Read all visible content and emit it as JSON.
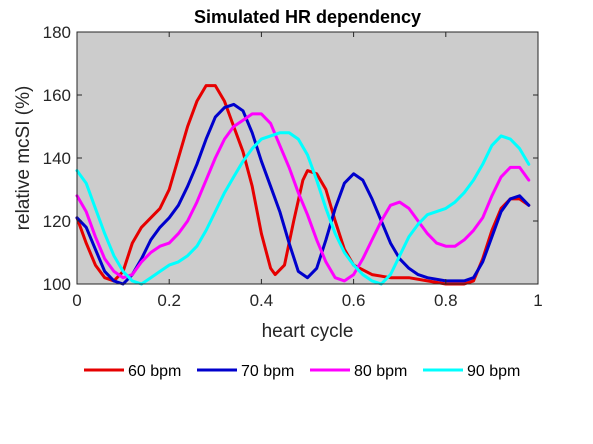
{
  "chart_data": {
    "type": "line",
    "title": "Simulated HR dependency",
    "xlabel": "heart cycle",
    "ylabel": "relative mcSI (%)",
    "xlim": [
      0,
      1
    ],
    "ylim": [
      100,
      180
    ],
    "xticks": [
      "0",
      "0.2",
      "0.4",
      "0.6",
      "0.8",
      "1"
    ],
    "yticks": [
      "100",
      "120",
      "140",
      "160",
      "180"
    ],
    "grid": false,
    "plot_background": "#cccccc",
    "legend_position": "bottom",
    "series": [
      {
        "name": "60 bpm",
        "color": "#e60000",
        "points": [
          [
            0.0,
            121
          ],
          [
            0.02,
            113
          ],
          [
            0.04,
            106
          ],
          [
            0.06,
            102
          ],
          [
            0.08,
            101
          ],
          [
            0.1,
            104
          ],
          [
            0.12,
            113
          ],
          [
            0.14,
            118
          ],
          [
            0.16,
            121
          ],
          [
            0.18,
            124
          ],
          [
            0.2,
            130
          ],
          [
            0.22,
            140
          ],
          [
            0.24,
            150
          ],
          [
            0.26,
            158
          ],
          [
            0.28,
            163
          ],
          [
            0.3,
            163
          ],
          [
            0.32,
            158
          ],
          [
            0.34,
            150
          ],
          [
            0.36,
            142
          ],
          [
            0.38,
            131
          ],
          [
            0.4,
            116
          ],
          [
            0.42,
            105
          ],
          [
            0.43,
            103
          ],
          [
            0.45,
            106
          ],
          [
            0.47,
            120
          ],
          [
            0.49,
            133
          ],
          [
            0.5,
            136
          ],
          [
            0.52,
            135
          ],
          [
            0.54,
            130
          ],
          [
            0.56,
            120
          ],
          [
            0.58,
            111
          ],
          [
            0.6,
            106
          ],
          [
            0.64,
            103
          ],
          [
            0.68,
            102
          ],
          [
            0.72,
            102
          ],
          [
            0.76,
            101
          ],
          [
            0.8,
            100
          ],
          [
            0.84,
            100
          ],
          [
            0.86,
            101
          ],
          [
            0.88,
            108
          ],
          [
            0.9,
            117
          ],
          [
            0.92,
            124
          ],
          [
            0.94,
            127
          ],
          [
            0.96,
            127
          ],
          [
            0.98,
            125
          ]
        ]
      },
      {
        "name": "70 bpm",
        "color": "#0000cc",
        "points": [
          [
            0.0,
            121
          ],
          [
            0.02,
            118
          ],
          [
            0.04,
            111
          ],
          [
            0.06,
            104
          ],
          [
            0.08,
            101
          ],
          [
            0.1,
            100
          ],
          [
            0.12,
            103
          ],
          [
            0.14,
            108
          ],
          [
            0.16,
            114
          ],
          [
            0.18,
            118
          ],
          [
            0.2,
            121
          ],
          [
            0.22,
            125
          ],
          [
            0.24,
            131
          ],
          [
            0.26,
            138
          ],
          [
            0.28,
            146
          ],
          [
            0.3,
            153
          ],
          [
            0.32,
            156
          ],
          [
            0.34,
            157
          ],
          [
            0.36,
            155
          ],
          [
            0.38,
            148
          ],
          [
            0.4,
            139
          ],
          [
            0.42,
            131
          ],
          [
            0.44,
            123
          ],
          [
            0.46,
            113
          ],
          [
            0.48,
            104
          ],
          [
            0.5,
            102
          ],
          [
            0.52,
            105
          ],
          [
            0.54,
            114
          ],
          [
            0.56,
            124
          ],
          [
            0.58,
            132
          ],
          [
            0.6,
            135
          ],
          [
            0.62,
            133
          ],
          [
            0.64,
            127
          ],
          [
            0.66,
            120
          ],
          [
            0.68,
            113
          ],
          [
            0.7,
            108
          ],
          [
            0.72,
            105
          ],
          [
            0.74,
            103
          ],
          [
            0.76,
            102
          ],
          [
            0.8,
            101
          ],
          [
            0.84,
            101
          ],
          [
            0.86,
            102
          ],
          [
            0.88,
            107
          ],
          [
            0.9,
            115
          ],
          [
            0.92,
            123
          ],
          [
            0.94,
            127
          ],
          [
            0.96,
            128
          ],
          [
            0.98,
            125
          ]
        ]
      },
      {
        "name": "80 bpm",
        "color": "#ff00ff",
        "points": [
          [
            0.0,
            128
          ],
          [
            0.02,
            123
          ],
          [
            0.04,
            115
          ],
          [
            0.06,
            108
          ],
          [
            0.08,
            104
          ],
          [
            0.1,
            102
          ],
          [
            0.12,
            103
          ],
          [
            0.14,
            107
          ],
          [
            0.16,
            110
          ],
          [
            0.18,
            112
          ],
          [
            0.2,
            113
          ],
          [
            0.22,
            116
          ],
          [
            0.24,
            120
          ],
          [
            0.26,
            126
          ],
          [
            0.28,
            133
          ],
          [
            0.3,
            140
          ],
          [
            0.32,
            146
          ],
          [
            0.34,
            150
          ],
          [
            0.36,
            152
          ],
          [
            0.38,
            154
          ],
          [
            0.4,
            154
          ],
          [
            0.42,
            151
          ],
          [
            0.44,
            144
          ],
          [
            0.46,
            137
          ],
          [
            0.48,
            129
          ],
          [
            0.5,
            122
          ],
          [
            0.52,
            114
          ],
          [
            0.54,
            107
          ],
          [
            0.56,
            102
          ],
          [
            0.58,
            101
          ],
          [
            0.6,
            103
          ],
          [
            0.62,
            108
          ],
          [
            0.64,
            114
          ],
          [
            0.66,
            120
          ],
          [
            0.68,
            125
          ],
          [
            0.7,
            126
          ],
          [
            0.72,
            124
          ],
          [
            0.74,
            120
          ],
          [
            0.76,
            116
          ],
          [
            0.78,
            113
          ],
          [
            0.8,
            112
          ],
          [
            0.82,
            112
          ],
          [
            0.84,
            114
          ],
          [
            0.86,
            117
          ],
          [
            0.88,
            121
          ],
          [
            0.9,
            128
          ],
          [
            0.92,
            134
          ],
          [
            0.94,
            137
          ],
          [
            0.96,
            137
          ],
          [
            0.98,
            133
          ]
        ]
      },
      {
        "name": "90 bpm",
        "color": "#00ffff",
        "points": [
          [
            0.0,
            136
          ],
          [
            0.02,
            132
          ],
          [
            0.04,
            124
          ],
          [
            0.06,
            116
          ],
          [
            0.08,
            109
          ],
          [
            0.1,
            104
          ],
          [
            0.12,
            101
          ],
          [
            0.14,
            100
          ],
          [
            0.16,
            102
          ],
          [
            0.18,
            104
          ],
          [
            0.2,
            106
          ],
          [
            0.22,
            107
          ],
          [
            0.24,
            109
          ],
          [
            0.26,
            112
          ],
          [
            0.28,
            117
          ],
          [
            0.3,
            123
          ],
          [
            0.32,
            129
          ],
          [
            0.34,
            134
          ],
          [
            0.36,
            139
          ],
          [
            0.38,
            143
          ],
          [
            0.4,
            146
          ],
          [
            0.42,
            147
          ],
          [
            0.44,
            148
          ],
          [
            0.46,
            148
          ],
          [
            0.48,
            146
          ],
          [
            0.5,
            141
          ],
          [
            0.52,
            133
          ],
          [
            0.54,
            124
          ],
          [
            0.56,
            116
          ],
          [
            0.58,
            110
          ],
          [
            0.6,
            106
          ],
          [
            0.62,
            103
          ],
          [
            0.64,
            101
          ],
          [
            0.66,
            100
          ],
          [
            0.68,
            103
          ],
          [
            0.7,
            109
          ],
          [
            0.72,
            115
          ],
          [
            0.74,
            119
          ],
          [
            0.76,
            122
          ],
          [
            0.78,
            123
          ],
          [
            0.8,
            124
          ],
          [
            0.82,
            126
          ],
          [
            0.84,
            129
          ],
          [
            0.86,
            133
          ],
          [
            0.88,
            138
          ],
          [
            0.9,
            144
          ],
          [
            0.92,
            147
          ],
          [
            0.94,
            146
          ],
          [
            0.96,
            143
          ],
          [
            0.98,
            138
          ]
        ]
      }
    ]
  }
}
